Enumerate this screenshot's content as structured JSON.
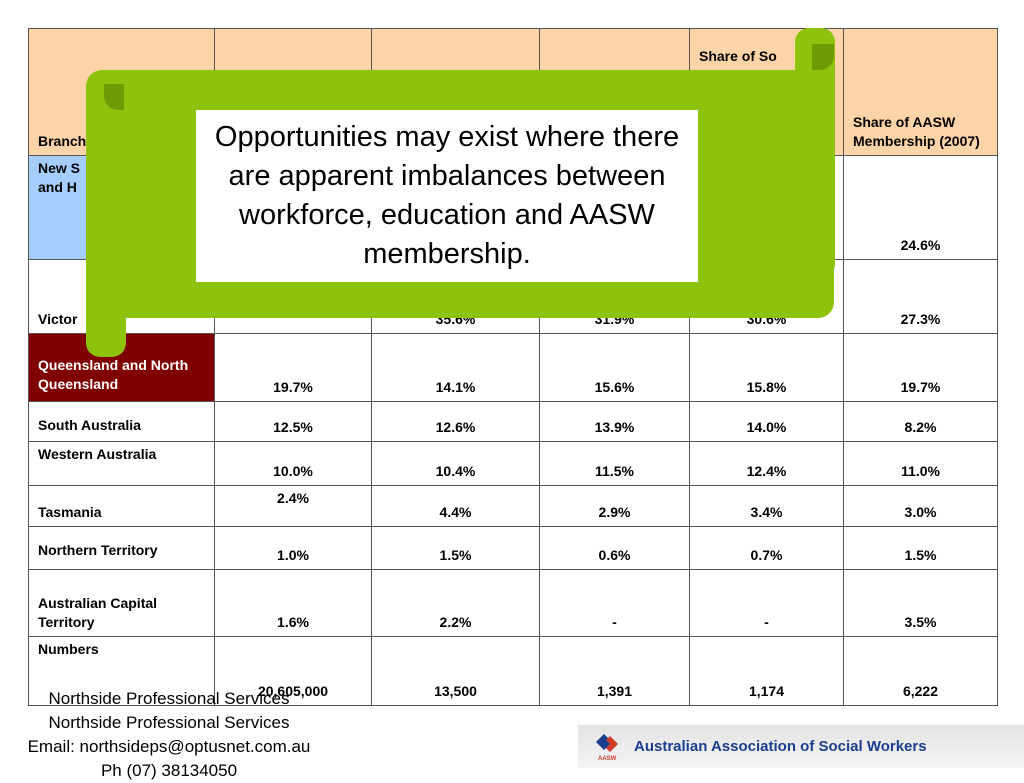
{
  "table": {
    "headers": [
      "Branch",
      "",
      "",
      "",
      "Share of So",
      "Share of AASW Membership (2007)"
    ],
    "rows": [
      {
        "branch": "New S\nand H",
        "values": [
          "",
          "",
          "",
          "",
          "24.6%"
        ]
      },
      {
        "branch": "Victor",
        "values": [
          "",
          "35.6%",
          "31.9%",
          "30.6%",
          "27.3%"
        ]
      },
      {
        "branch": "Queensland and North Queensland",
        "values": [
          "19.7%",
          "14.1%",
          "15.6%",
          "15.8%",
          "19.7%"
        ]
      },
      {
        "branch": "South Australia",
        "values": [
          "12.5%",
          "12.6%",
          "13.9%",
          "14.0%",
          "8.2%"
        ]
      },
      {
        "branch": "Western Australia",
        "values": [
          "10.0%",
          "10.4%",
          "11.5%",
          "12.4%",
          "11.0%"
        ]
      },
      {
        "branch": "Tasmania",
        "values": [
          "2.4%",
          "4.4%",
          "2.9%",
          "3.4%",
          "3.0%"
        ]
      },
      {
        "branch": "Northern Territory",
        "values": [
          "1.0%",
          "1.5%",
          "0.6%",
          "0.7%",
          "1.5%"
        ]
      },
      {
        "branch": "Australian Capital Territory",
        "values": [
          "1.6%",
          "2.2%",
          "-",
          "-",
          "3.5%"
        ]
      },
      {
        "branch": "Numbers",
        "values": [
          "20,605,000",
          "13,500",
          "1,391",
          "1,174",
          "6,222"
        ]
      }
    ]
  },
  "callout": {
    "text": "Opportunities may exist where there are apparent imbalances between workforce, education and AASW membership."
  },
  "footer": {
    "lines": [
      "Northside Professional Services",
      "Northside Professional Services",
      "Email: northsideps@optusnet.com.au",
      "Ph (07) 38134050"
    ]
  },
  "logo": {
    "name": "Australian Association of Social Workers",
    "mark_label": "AASW"
  },
  "colors": {
    "header_bg": "#fcd4a8",
    "nsw_cell_bg": "#a5cdfe",
    "qld_cell_bg": "#800000",
    "callout_green": "#8dc20d",
    "logo_text": "#1a3f8f"
  }
}
